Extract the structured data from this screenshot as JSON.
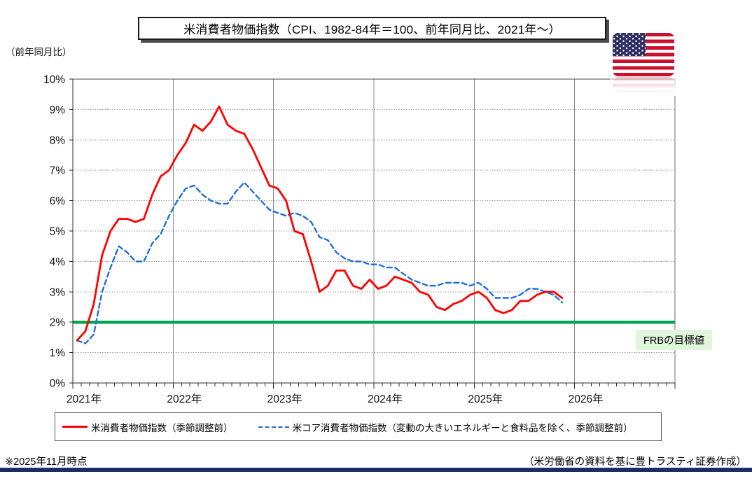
{
  "header": {
    "y_axis_unit_label": "（前年同月比）",
    "title": "米消費者物価指数（CPI、1982-84年＝100、前年同月比、2021年～）"
  },
  "icons": {
    "us_flag": "us-flag-icon"
  },
  "chart_data": {
    "type": "line",
    "title": "米消費者物価指数（CPI、1982-84年＝100、前年同月比、2021年～）",
    "xlabel": "",
    "ylabel": "（前年同月比）",
    "ylim": [
      0,
      10
    ],
    "grid": true,
    "x_unit": "month",
    "x_start": "2021-01",
    "x_end_axis": "2026-12",
    "x_tick_labels": [
      "2021年",
      "2022年",
      "2023年",
      "2024年",
      "2025年",
      "2026年"
    ],
    "y_tick_labels": [
      "0%",
      "1%",
      "2%",
      "3%",
      "4%",
      "5%",
      "6%",
      "7%",
      "8%",
      "9%",
      "10%"
    ],
    "reference_line": {
      "value": 2,
      "label": "FRBの目標値",
      "color": "#00A651",
      "label_bg": "#DFF5DC"
    },
    "series": [
      {
        "name": "米消費者物価指数（季節調整前）",
        "color": "#FF0000",
        "line_style": "solid",
        "values": [
          1.4,
          1.7,
          2.6,
          4.2,
          5.0,
          5.4,
          5.4,
          5.3,
          5.4,
          6.2,
          6.8,
          7.0,
          7.5,
          7.9,
          8.5,
          8.3,
          8.6,
          9.1,
          8.5,
          8.3,
          8.2,
          7.7,
          7.1,
          6.5,
          6.4,
          6.0,
          5.0,
          4.9,
          4.0,
          3.0,
          3.2,
          3.7,
          3.7,
          3.2,
          3.1,
          3.4,
          3.1,
          3.2,
          3.5,
          3.4,
          3.3,
          3.0,
          2.9,
          2.5,
          2.4,
          2.6,
          2.7,
          2.9,
          3.0,
          2.8,
          2.4,
          2.3,
          2.4,
          2.7,
          2.7,
          2.9,
          3.0,
          3.0,
          2.8
        ]
      },
      {
        "name": "米コア消費者物価指数（変動の大きいエネルギーと食料品を除く、季節調整前）",
        "color": "#1E6FD8",
        "line_style": "dashed",
        "values": [
          1.4,
          1.3,
          1.6,
          3.0,
          3.8,
          4.5,
          4.3,
          4.0,
          4.0,
          4.6,
          4.9,
          5.5,
          6.0,
          6.4,
          6.5,
          6.2,
          6.0,
          5.9,
          5.9,
          6.3,
          6.6,
          6.3,
          6.0,
          5.7,
          5.6,
          5.5,
          5.6,
          5.5,
          5.3,
          4.8,
          4.7,
          4.3,
          4.1,
          4.0,
          4.0,
          3.9,
          3.9,
          3.8,
          3.8,
          3.6,
          3.4,
          3.3,
          3.2,
          3.2,
          3.3,
          3.3,
          3.3,
          3.2,
          3.3,
          3.1,
          2.8,
          2.8,
          2.8,
          2.9,
          3.1,
          3.1,
          3.0,
          2.9,
          2.65
        ]
      }
    ],
    "legend_position": "bottom"
  },
  "footer": {
    "note": "※2025年11月時点",
    "source": "（米労働省の資料を基に豊トラスティ証券作成）"
  }
}
